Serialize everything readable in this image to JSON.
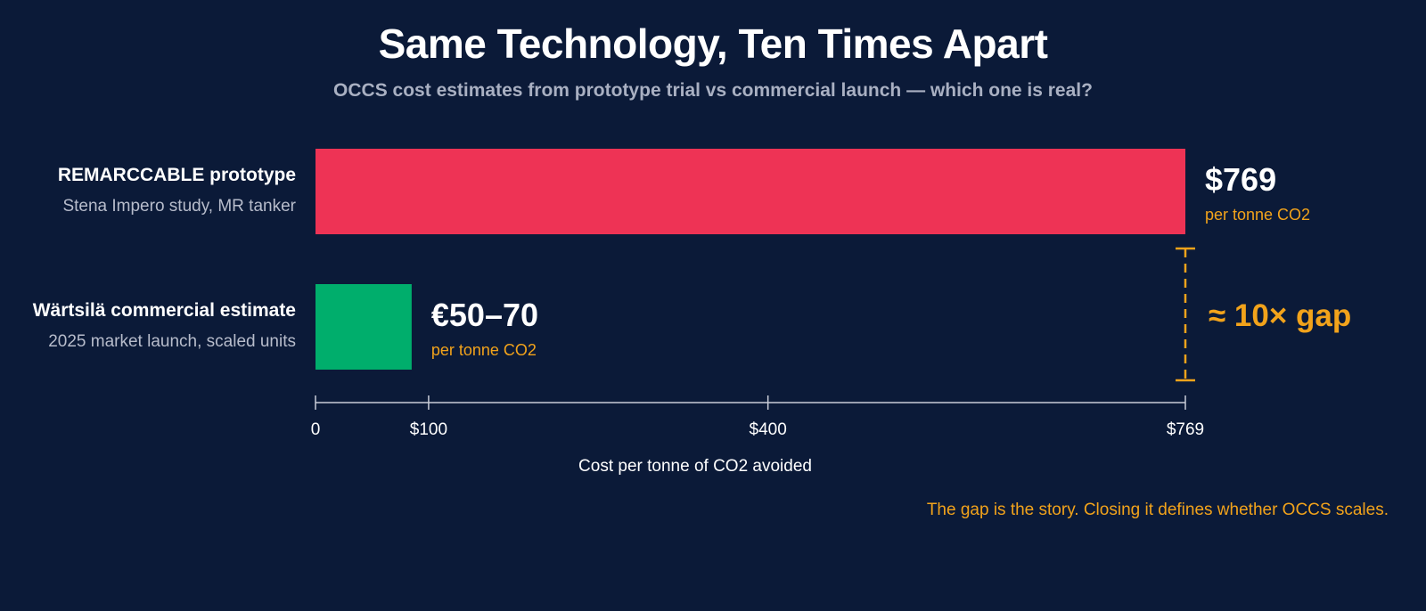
{
  "title": "Same Technology, Ten Times Apart",
  "subtitle": "OCCS cost estimates from prototype trial vs commercial launch — which one is real?",
  "footnote": "The gap is the story. Closing it defines whether OCCS scales.",
  "colors": {
    "background": "#0b1a38",
    "prototype_bar": "#ee3355",
    "commercial_bar": "#00ae6c",
    "accent": "#f2a31b",
    "axis": "#c9cdd8"
  },
  "chart_data": {
    "type": "bar",
    "orientation": "horizontal",
    "categories": [
      "REMARCCABLE prototype",
      "Wärtsilä commercial estimate"
    ],
    "category_sublabels": [
      "Stena Impero study, MR tanker",
      "2025 market launch, scaled units"
    ],
    "values": [
      769,
      85
    ],
    "value_labels": [
      "$769",
      "€50–70"
    ],
    "value_units": [
      "per tonne CO2",
      "per tonne CO2"
    ],
    "xlabel": "Cost per tonne of CO2 avoided",
    "xticks": [
      {
        "value": 0,
        "label": "0"
      },
      {
        "value": 100,
        "label": "$100"
      },
      {
        "value": 400,
        "label": "$400"
      },
      {
        "value": 769,
        "label": "$769"
      }
    ],
    "xlim": [
      0,
      769
    ],
    "annotation": "≈ 10× gap",
    "grid": false,
    "legend": "none"
  }
}
